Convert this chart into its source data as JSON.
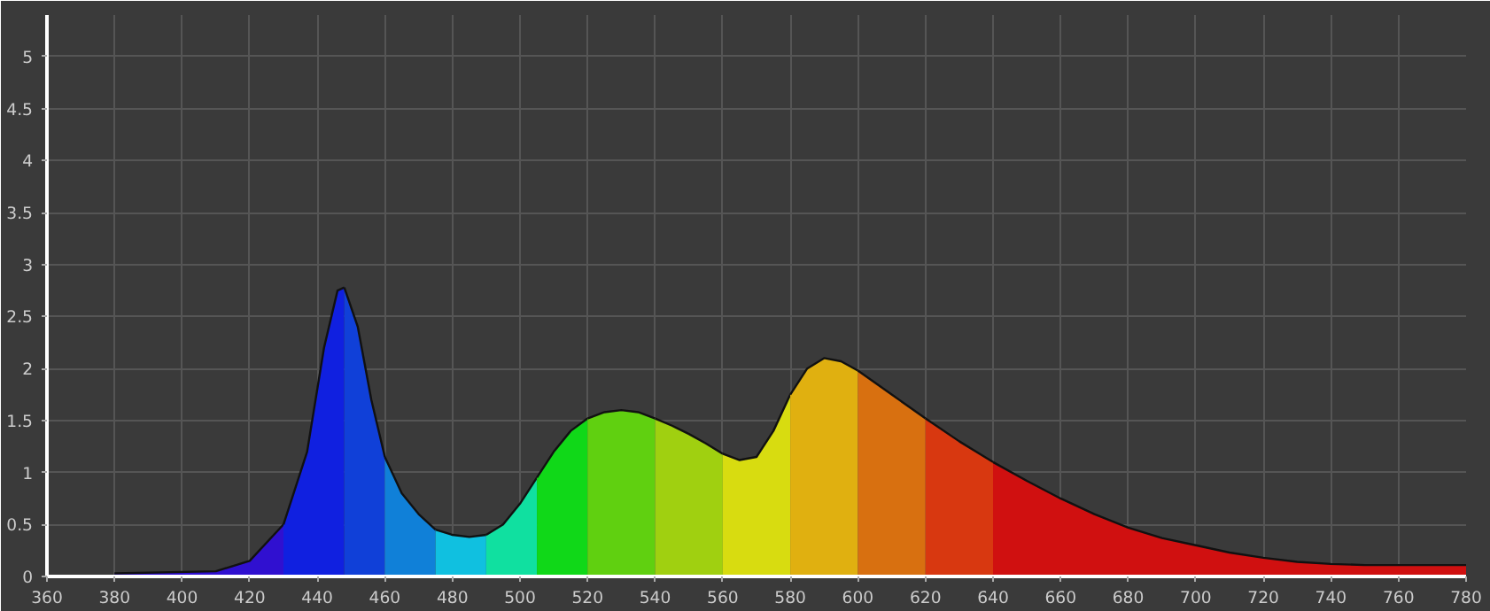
{
  "chart_data": {
    "type": "area",
    "series": [
      {
        "color": "#3010d0",
        "x": [
          380,
          410,
          420,
          430
        ],
        "values": [
          0.03,
          0.05,
          0.15,
          0.5
        ]
      },
      {
        "color": "#1020e0",
        "x": [
          430,
          437,
          442,
          446,
          448
        ],
        "values": [
          0.5,
          1.2,
          2.2,
          2.75,
          2.78
        ]
      },
      {
        "color": "#1040d8",
        "x": [
          448,
          452,
          456,
          460
        ],
        "values": [
          2.78,
          2.4,
          1.7,
          1.15
        ]
      },
      {
        "color": "#1080d8",
        "x": [
          460,
          465,
          470,
          475
        ],
        "values": [
          1.15,
          0.8,
          0.6,
          0.45
        ]
      },
      {
        "color": "#10c0e0",
        "x": [
          475,
          480,
          485,
          490
        ],
        "values": [
          0.45,
          0.4,
          0.38,
          0.4
        ]
      },
      {
        "color": "#10e0a0",
        "x": [
          490,
          495,
          500,
          505
        ],
        "values": [
          0.4,
          0.5,
          0.7,
          0.95
        ]
      },
      {
        "color": "#10d818",
        "x": [
          505,
          510,
          515,
          520
        ],
        "values": [
          0.95,
          1.2,
          1.4,
          1.52
        ]
      },
      {
        "color": "#60d010",
        "x": [
          520,
          525,
          530,
          535,
          540
        ],
        "values": [
          1.52,
          1.58,
          1.6,
          1.58,
          1.52
        ]
      },
      {
        "color": "#a0d010",
        "x": [
          540,
          545,
          550,
          555,
          560
        ],
        "values": [
          1.52,
          1.45,
          1.37,
          1.28,
          1.18
        ]
      },
      {
        "color": "#d8dc10",
        "x": [
          560,
          565,
          570,
          575,
          580
        ],
        "values": [
          1.18,
          1.12,
          1.15,
          1.4,
          1.75
        ]
      },
      {
        "color": "#e0b010",
        "x": [
          580,
          585,
          590,
          595,
          600
        ],
        "values": [
          1.75,
          2.0,
          2.1,
          2.07,
          1.98
        ]
      },
      {
        "color": "#d87010",
        "x": [
          600,
          610,
          620
        ],
        "values": [
          1.98,
          1.75,
          1.52
        ]
      },
      {
        "color": "#d83810",
        "x": [
          620,
          630,
          640
        ],
        "values": [
          1.52,
          1.3,
          1.1
        ]
      },
      {
        "color": "#d01010",
        "x": [
          640,
          650,
          660,
          670,
          680,
          690,
          700,
          710,
          720,
          730,
          740,
          750,
          760,
          770,
          780
        ],
        "values": [
          1.1,
          0.92,
          0.75,
          0.6,
          0.47,
          0.37,
          0.3,
          0.23,
          0.18,
          0.14,
          0.12,
          0.11,
          0.11,
          0.11,
          0.11
        ]
      }
    ],
    "xlim": [
      360,
      780
    ],
    "ylim": [
      0,
      5.4
    ],
    "xticks": [
      360,
      380,
      400,
      420,
      440,
      460,
      480,
      500,
      520,
      540,
      560,
      580,
      600,
      620,
      640,
      660,
      680,
      700,
      720,
      740,
      760,
      780
    ],
    "yticks": [
      0,
      0.5,
      1,
      1.5,
      2,
      2.5,
      3,
      3.5,
      4,
      4.5,
      5
    ],
    "grid": true
  }
}
